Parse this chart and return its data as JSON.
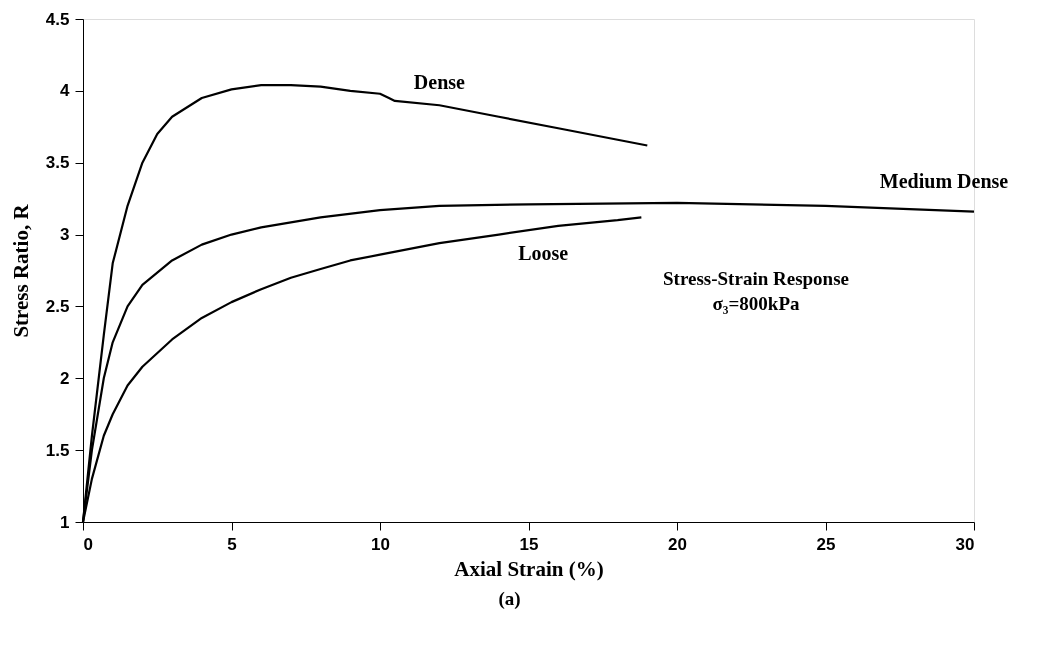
{
  "chart_data": {
    "type": "line",
    "xlabel": "Axial Strain (%)",
    "ylabel": "Stress Ratio, R",
    "xlim": [
      0,
      30
    ],
    "ylim": [
      1,
      4.5
    ],
    "xticks": [
      0,
      5,
      10,
      15,
      20,
      25,
      30
    ],
    "yticks": [
      1,
      1.5,
      2,
      2.5,
      3,
      3.5,
      4,
      4.5
    ],
    "marker": "none",
    "line_style": "solid",
    "series": [
      {
        "name": "Dense",
        "color": "#000000",
        "x": [
          0,
          0.3,
          0.7,
          1,
          1.5,
          2,
          2.5,
          3,
          4,
          5,
          6,
          7,
          8,
          9,
          10,
          10.3,
          10.5,
          12,
          14,
          16,
          18,
          19
        ],
        "values": [
          1,
          1.6,
          2.3,
          2.8,
          3.2,
          3.5,
          3.7,
          3.82,
          3.95,
          4.01,
          4.04,
          4.04,
          4.03,
          4.0,
          3.98,
          3.95,
          3.93,
          3.9,
          3.82,
          3.74,
          3.66,
          3.62
        ]
      },
      {
        "name": "Medium Dense",
        "color": "#000000",
        "x": [
          0,
          0.3,
          0.7,
          1,
          1.5,
          2,
          3,
          4,
          5,
          6,
          8,
          10,
          12,
          15,
          20,
          25,
          30
        ],
        "values": [
          1,
          1.5,
          2.0,
          2.25,
          2.5,
          2.65,
          2.82,
          2.93,
          3.0,
          3.05,
          3.12,
          3.17,
          3.2,
          3.21,
          3.22,
          3.2,
          3.16
        ]
      },
      {
        "name": "Loose",
        "color": "#000000",
        "x": [
          0,
          0.3,
          0.7,
          1,
          1.5,
          2,
          3,
          4,
          5,
          6,
          7,
          8,
          9,
          10,
          12,
          14,
          16,
          18,
          18.8
        ],
        "values": [
          1,
          1.3,
          1.6,
          1.75,
          1.95,
          2.08,
          2.27,
          2.42,
          2.53,
          2.62,
          2.7,
          2.76,
          2.82,
          2.86,
          2.94,
          3.0,
          3.06,
          3.1,
          3.12
        ]
      }
    ],
    "annotations": [
      "Stress-Strain Response",
      "σ₃=800kPa",
      "(a)"
    ]
  }
}
